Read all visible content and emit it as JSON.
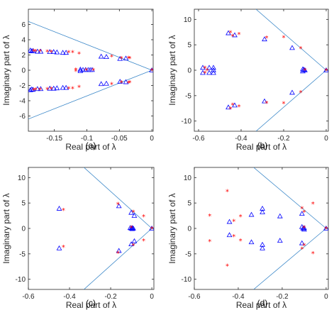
{
  "colors": {
    "triangle": "#0000ff",
    "star": "#ff0000",
    "line": "#3a87c8",
    "axis": "#262626"
  },
  "chart_data": [
    {
      "type": "scatter",
      "panel_label": "(a)",
      "xlabel": "Real part of λ",
      "ylabel": "Imaginary part of λ",
      "xlim": [
        -0.19,
        0.002
      ],
      "ylim": [
        -8,
        8
      ],
      "xticks": [
        -0.15,
        -0.1,
        -0.05,
        0
      ],
      "yticks": [
        -6,
        -4,
        -2,
        0,
        2,
        4,
        6
      ],
      "xtick_labels": [
        "-0.15",
        "-0.1",
        "-0.05",
        "0"
      ],
      "ytick_labels": [
        "-6",
        "-4",
        "-2",
        "0",
        "2",
        "4",
        "6"
      ],
      "lines": [
        [
          [
            0,
            0
          ],
          [
            -0.19,
            6.4
          ]
        ],
        [
          [
            0,
            0
          ],
          [
            -0.19,
            -6.4
          ]
        ]
      ],
      "series": [
        {
          "marker": "triangle",
          "points": [
            [
              -0.187,
              2.6
            ],
            [
              -0.185,
              2.5
            ],
            [
              -0.183,
              2.55
            ],
            [
              -0.176,
              2.45
            ],
            [
              -0.171,
              2.45
            ],
            [
              -0.157,
              2.4
            ],
            [
              -0.151,
              2.4
            ],
            [
              -0.146,
              2.35
            ],
            [
              -0.137,
              2.3
            ],
            [
              -0.132,
              2.3
            ],
            [
              -0.106,
              0.05
            ],
            [
              -0.102,
              0.05
            ],
            [
              -0.098,
              0.05
            ],
            [
              -0.095,
              0.05
            ],
            [
              -0.092,
              0.05
            ],
            [
              -0.11,
              0.1
            ],
            [
              -0.078,
              1.8
            ],
            [
              -0.07,
              1.75
            ],
            [
              -0.049,
              1.5
            ],
            [
              -0.04,
              1.55
            ],
            [
              -0.187,
              -2.6
            ],
            [
              -0.185,
              -2.5
            ],
            [
              -0.183,
              -2.55
            ],
            [
              -0.176,
              -2.45
            ],
            [
              -0.171,
              -2.45
            ],
            [
              -0.157,
              -2.4
            ],
            [
              -0.151,
              -2.4
            ],
            [
              -0.146,
              -2.35
            ],
            [
              -0.137,
              -2.3
            ],
            [
              -0.132,
              -2.3
            ],
            [
              -0.11,
              -0.1
            ],
            [
              -0.078,
              -1.8
            ],
            [
              -0.07,
              -1.75
            ],
            [
              -0.049,
              -1.5
            ],
            [
              -0.04,
              -1.55
            ],
            [
              0,
              0
            ]
          ]
        },
        {
          "marker": "star",
          "points": [
            [
              -0.182,
              2.55
            ],
            [
              -0.179,
              2.5
            ],
            [
              -0.172,
              2.5
            ],
            [
              -0.161,
              2.45
            ],
            [
              -0.155,
              2.4
            ],
            [
              -0.128,
              2.35
            ],
            [
              -0.122,
              2.35
            ],
            [
              -0.112,
              2.2
            ],
            [
              -0.117,
              0.1
            ],
            [
              -0.101,
              0.05
            ],
            [
              -0.09,
              0.05
            ],
            [
              -0.062,
              1.8
            ],
            [
              -0.047,
              1.6
            ],
            [
              -0.036,
              1.65
            ],
            [
              -0.034,
              1.6
            ],
            [
              -0.182,
              -2.55
            ],
            [
              -0.179,
              -2.5
            ],
            [
              -0.172,
              -2.5
            ],
            [
              -0.161,
              -2.45
            ],
            [
              -0.155,
              -2.4
            ],
            [
              -0.128,
              -2.35
            ],
            [
              -0.122,
              -2.35
            ],
            [
              -0.112,
              -2.2
            ],
            [
              -0.117,
              -0.1
            ],
            [
              -0.062,
              -1.8
            ],
            [
              -0.047,
              -1.6
            ],
            [
              -0.036,
              -1.65
            ],
            [
              -0.034,
              -1.6
            ],
            [
              0,
              0
            ]
          ]
        }
      ]
    },
    {
      "type": "scatter",
      "panel_label": "(b)",
      "xlabel": "Real part of λ",
      "ylabel": "Imaginary part of λ",
      "xlim": [
        -0.62,
        0.01
      ],
      "ylim": [
        -12,
        12
      ],
      "xticks": [
        -0.6,
        -0.4,
        -0.2,
        0
      ],
      "yticks": [
        -10,
        -5,
        0,
        5,
        10
      ],
      "xtick_labels": [
        "-0.6",
        "-0.4",
        "-0.2",
        "0"
      ],
      "ytick_labels": [
        "-10",
        "-5",
        "0",
        "5",
        "10"
      ],
      "lines": [
        [
          [
            0,
            0
          ],
          [
            -0.33,
            12
          ]
        ],
        [
          [
            0,
            0
          ],
          [
            -0.33,
            -12
          ]
        ]
      ],
      "series": [
        {
          "marker": "triangle",
          "points": [
            [
              -0.58,
              0.5
            ],
            [
              -0.58,
              -0.5
            ],
            [
              -0.55,
              0.5
            ],
            [
              -0.55,
              -0.5
            ],
            [
              -0.53,
              0.5
            ],
            [
              -0.53,
              -0.5
            ],
            [
              -0.53,
              0
            ],
            [
              -0.46,
              7.3
            ],
            [
              -0.43,
              6.9
            ],
            [
              -0.29,
              6.1
            ],
            [
              -0.16,
              4.4
            ],
            [
              -0.11,
              0.2
            ],
            [
              -0.105,
              0.1
            ],
            [
              -0.1,
              0
            ],
            [
              -0.46,
              -7.3
            ],
            [
              -0.43,
              -6.9
            ],
            [
              -0.29,
              -6.1
            ],
            [
              -0.16,
              -4.4
            ],
            [
              -0.11,
              -0.2
            ],
            [
              0,
              0
            ]
          ]
        },
        {
          "marker": "star",
          "points": [
            [
              -0.57,
              0.5
            ],
            [
              -0.57,
              -0.5
            ],
            [
              -0.56,
              0
            ],
            [
              -0.45,
              7.5
            ],
            [
              -0.44,
              6.8
            ],
            [
              -0.41,
              7.1
            ],
            [
              -0.28,
              6.4
            ],
            [
              -0.2,
              6.5
            ],
            [
              -0.12,
              4.3
            ],
            [
              -0.1,
              0.1
            ],
            [
              -0.45,
              -7.5
            ],
            [
              -0.44,
              -6.8
            ],
            [
              -0.41,
              -7.1
            ],
            [
              -0.28,
              -6.4
            ],
            [
              -0.2,
              -6.5
            ],
            [
              -0.12,
              -4.3
            ],
            [
              0,
              0
            ]
          ]
        }
      ]
    },
    {
      "type": "scatter",
      "panel_label": "(c)",
      "xlabel": "Real part of λ",
      "ylabel": "Imaginary part of λ",
      "xlim": [
        -0.6,
        0.01
      ],
      "ylim": [
        -12,
        12
      ],
      "xticks": [
        -0.6,
        -0.4,
        -0.2,
        0
      ],
      "yticks": [
        -10,
        -5,
        0,
        5,
        10
      ],
      "xtick_labels": [
        "-0.6",
        "-0.4",
        "-0.2",
        "0"
      ],
      "ytick_labels": [
        "-10",
        "-5",
        "0",
        "5",
        "10"
      ],
      "lines": [
        [
          [
            0,
            0
          ],
          [
            -0.33,
            12
          ]
        ],
        [
          [
            0,
            0
          ],
          [
            -0.33,
            -12
          ]
        ]
      ],
      "series": [
        {
          "marker": "triangle",
          "points": [
            [
              -0.45,
              3.9
            ],
            [
              -0.45,
              -3.9
            ],
            [
              -0.16,
              4.4
            ],
            [
              -0.16,
              -4.4
            ],
            [
              -0.1,
              3.1
            ],
            [
              -0.1,
              -3.1
            ],
            [
              -0.105,
              0.1
            ],
            [
              -0.1,
              0
            ],
            [
              -0.095,
              0.1
            ],
            [
              -0.095,
              -0.1
            ],
            [
              -0.09,
              0
            ],
            [
              -0.085,
              2.5
            ],
            [
              -0.085,
              -2.5
            ],
            [
              0,
              0
            ]
          ]
        },
        {
          "marker": "star",
          "points": [
            [
              -0.43,
              3.6
            ],
            [
              -0.43,
              -3.6
            ],
            [
              -0.165,
              4.8
            ],
            [
              -0.165,
              -4.8
            ],
            [
              -0.09,
              3.3
            ],
            [
              -0.09,
              -3.3
            ],
            [
              -0.1,
              0.2
            ],
            [
              -0.04,
              2.4
            ],
            [
              -0.04,
              -2.4
            ],
            [
              0,
              0
            ]
          ]
        }
      ]
    },
    {
      "type": "scatter",
      "panel_label": "(d)",
      "xlabel": "Real part of λ",
      "ylabel": "Imaginary part of λ",
      "xlim": [
        -0.6,
        0.01
      ],
      "ylim": [
        -12,
        12
      ],
      "xticks": [
        -0.6,
        -0.4,
        -0.2,
        0
      ],
      "yticks": [
        -10,
        -5,
        0,
        5,
        10
      ],
      "xtick_labels": [
        "-0.6",
        "-0.4",
        "-0.2",
        "0"
      ],
      "ytick_labels": [
        "-10",
        "-5",
        "0",
        "5",
        "10"
      ],
      "lines": [
        [
          [
            0,
            0
          ],
          [
            -0.33,
            12
          ]
        ],
        [
          [
            0,
            0
          ],
          [
            -0.33,
            -12
          ]
        ]
      ],
      "series": [
        {
          "marker": "triangle",
          "points": [
            [
              -0.44,
              1.3
            ],
            [
              -0.44,
              -1.3
            ],
            [
              -0.34,
              2.7
            ],
            [
              -0.34,
              -2.7
            ],
            [
              -0.29,
              3.2
            ],
            [
              -0.29,
              -3.2
            ],
            [
              -0.29,
              3.9
            ],
            [
              -0.29,
              -3.9
            ],
            [
              -0.21,
              2.4
            ],
            [
              -0.21,
              -2.4
            ],
            [
              -0.11,
              0.3
            ],
            [
              -0.105,
              0
            ],
            [
              -0.1,
              0.1
            ],
            [
              -0.1,
              -0.2
            ],
            [
              -0.11,
              2.9
            ],
            [
              -0.11,
              -2.9
            ],
            [
              0,
              0
            ]
          ]
        },
        {
          "marker": "star",
          "points": [
            [
              -0.53,
              2.5
            ],
            [
              -0.53,
              -2.5
            ],
            [
              -0.45,
              7.3
            ],
            [
              -0.45,
              -7.3
            ],
            [
              -0.42,
              1.5
            ],
            [
              -0.42,
              -1.5
            ],
            [
              -0.39,
              2.4
            ],
            [
              -0.39,
              -2.4
            ],
            [
              -0.11,
              4.0
            ],
            [
              -0.11,
              -4.0
            ],
            [
              -0.1,
              3.3
            ],
            [
              -0.1,
              -3.3
            ],
            [
              -0.1,
              0.2
            ],
            [
              -0.06,
              4.9
            ],
            [
              -0.06,
              -4.9
            ],
            [
              0,
              0
            ]
          ]
        }
      ]
    }
  ]
}
